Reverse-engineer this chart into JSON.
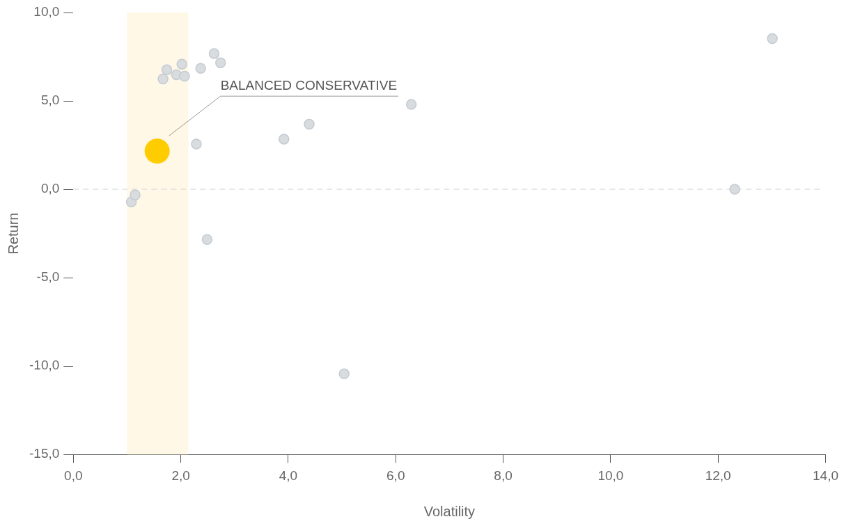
{
  "chart_data": {
    "type": "scatter",
    "xlabel": "Volatility",
    "ylabel": "Return",
    "xlim": [
      0,
      14
    ],
    "ylim": [
      -15,
      10
    ],
    "xticks": [
      {
        "value": 0,
        "label": "0,0"
      },
      {
        "value": 2,
        "label": "2,0"
      },
      {
        "value": 4,
        "label": "4,0"
      },
      {
        "value": 6,
        "label": "6,0"
      },
      {
        "value": 8,
        "label": "8,0"
      },
      {
        "value": 10,
        "label": "10,0"
      },
      {
        "value": 12,
        "label": "12,0"
      },
      {
        "value": 14,
        "label": "14,0"
      }
    ],
    "yticks": [
      {
        "value": -15,
        "label": "-15,0"
      },
      {
        "value": -10,
        "label": "-10,0"
      },
      {
        "value": -5,
        "label": "-5,0"
      },
      {
        "value": 0,
        "label": "0,0"
      },
      {
        "value": 5,
        "label": "5,0"
      },
      {
        "value": 10,
        "label": "10,0"
      }
    ],
    "series": [
      {
        "color": "#d9dcdf",
        "x": [
          1.08,
          1.15,
          1.67,
          1.74,
          1.92,
          2.02,
          2.07,
          2.29,
          2.37,
          2.49,
          2.62,
          2.74,
          3.92,
          4.39,
          5.04,
          6.29,
          12.31,
          13.01
        ],
        "values": [
          -0.72,
          -0.32,
          6.24,
          6.76,
          6.48,
          7.08,
          6.4,
          2.56,
          6.84,
          -2.84,
          7.68,
          7.16,
          2.84,
          3.68,
          -10.44,
          4.8,
          0.0,
          8.52
        ]
      },
      {
        "color": "#ffcc00",
        "x": [
          1.56
        ],
        "values": [
          2.16
        ]
      }
    ],
    "bands": [
      {
        "axis": "x",
        "from": 1.0,
        "to": 2.14,
        "color": "#fff8e6"
      }
    ],
    "ref_lines": [
      {
        "axis": "y",
        "value": 0,
        "color": "#e0e0e0",
        "line_style": "dashed"
      }
    ],
    "annotations": [
      "BALANCED CONSERVATIVE"
    ],
    "marker": "circle",
    "grid": false,
    "legend": false
  }
}
